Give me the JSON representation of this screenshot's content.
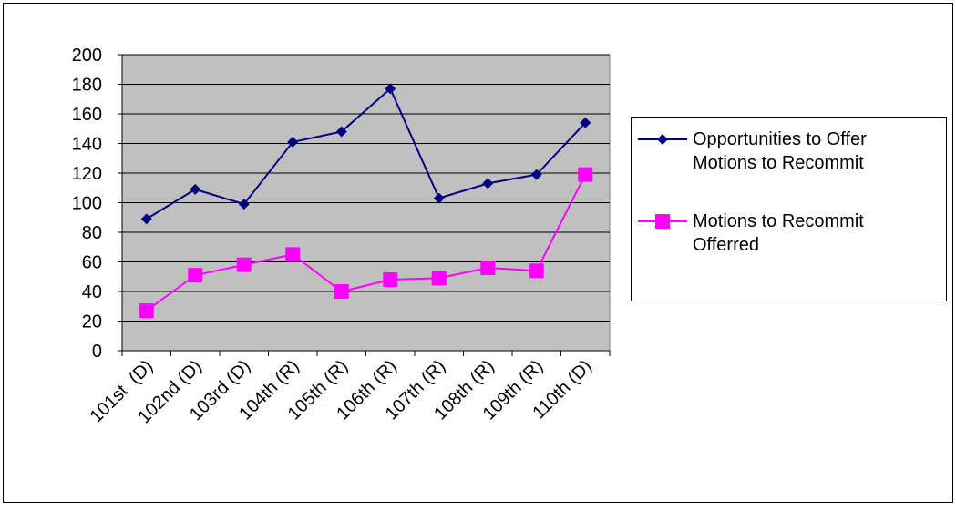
{
  "chart_data": {
    "type": "line",
    "categories": [
      "101st  (D)",
      "102nd (D)",
      "103rd (D)",
      "104th (R)",
      "105th (R)",
      "106th (R)",
      "107th (R)",
      "108th (R)",
      "109th (R)",
      "110th (D)"
    ],
    "series": [
      {
        "name": "Opportunities to Offer Motions to Recommit",
        "color": "#000080",
        "marker": "diamond",
        "values": [
          89,
          109,
          99,
          141,
          148,
          177,
          103,
          113,
          119,
          154
        ]
      },
      {
        "name": "Motions to Recommit Offerred",
        "color": "#ff00ff",
        "marker": "square",
        "values": [
          27,
          51,
          58,
          65,
          40,
          48,
          49,
          56,
          54,
          119
        ]
      }
    ],
    "ylim": [
      0,
      200
    ],
    "yticks": [
      0,
      20,
      40,
      60,
      80,
      100,
      120,
      140,
      160,
      180,
      200
    ],
    "grid": true,
    "legend": "right"
  }
}
